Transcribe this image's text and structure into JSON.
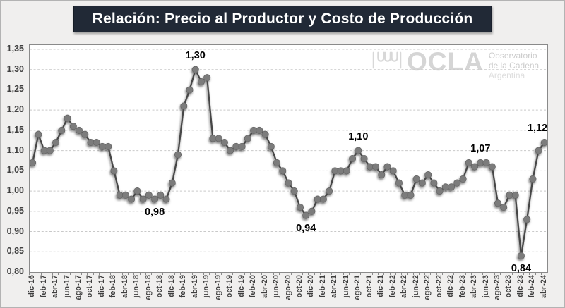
{
  "title": "Relación: Precio al Productor y Costo de Producción",
  "watermark": {
    "brand": "OCLA",
    "lines": [
      "Observatorio",
      "de la Cadena",
      "Argentina"
    ]
  },
  "colors": {
    "title_bg": "#212936",
    "title_text": "#ffffff",
    "line": "#474747",
    "marker": "#7b7b7b",
    "grid": "#c9c9c9",
    "plot_border": "#8a8a8a",
    "background": "#f0efee",
    "axis_text": "#3f3f3f",
    "callout_text": "#000000",
    "watermark_text": "#d2d2d2"
  },
  "chart_data": {
    "type": "line",
    "title": "Relación: Precio al Productor y Costo de Producción",
    "xlabel": "",
    "ylabel": "",
    "ylim": [
      0.8,
      1.35
    ],
    "ytick_step": 0.05,
    "ytick_labels": [
      "1,35",
      "1,30",
      "1,25",
      "1,20",
      "1,15",
      "1,10",
      "1,05",
      "1,00",
      "0,95",
      "0,90",
      "0,85",
      "0,80"
    ],
    "xtick_every": 2,
    "grid": "horizontal-dashed",
    "legend": "none",
    "marker": "circle",
    "x": [
      "dic-16",
      "ene-17",
      "feb-17",
      "mar-17",
      "abr-17",
      "may-17",
      "jun-17",
      "jul-17",
      "ago-17",
      "sep-17",
      "oct-17",
      "nov-17",
      "dic-17",
      "ene-18",
      "feb-18",
      "mar-18",
      "abr-18",
      "may-18",
      "jun-18",
      "jul-18",
      "ago-18",
      "sep-18",
      "oct-18",
      "nov-18",
      "dic-18",
      "ene-19",
      "feb-19",
      "mar-19",
      "abr-19",
      "may-19",
      "jun-19",
      "jul-19",
      "ago-19",
      "sep-19",
      "oct-19",
      "nov-19",
      "dic-19",
      "ene-20",
      "feb-20",
      "mar-20",
      "abr-20",
      "may-20",
      "jun-20",
      "jul-20",
      "ago-20",
      "sep-20",
      "oct-20",
      "nov-20",
      "dic-20",
      "ene-21",
      "feb-21",
      "mar-21",
      "abr-21",
      "may-21",
      "jun-21",
      "jul-21",
      "ago-21",
      "sep-21",
      "oct-21",
      "nov-21",
      "dic-21",
      "ene-22",
      "feb-22",
      "mar-22",
      "abr-22",
      "may-22",
      "jun-22",
      "jul-22",
      "ago-22",
      "sep-22",
      "oct-22",
      "nov-22",
      "dic-22",
      "ene-23",
      "feb-23",
      "mar-23",
      "abr-23",
      "may-23",
      "jun-23",
      "jul-23",
      "ago-23",
      "sep-23",
      "oct-23",
      "nov-23",
      "dic-23",
      "ene-24",
      "feb-24",
      "mar-24",
      "abr-24"
    ],
    "series": [
      {
        "name": "Relación Precio al Productor / Costo de Producción",
        "values": [
          1.07,
          1.14,
          1.1,
          1.1,
          1.12,
          1.15,
          1.18,
          1.16,
          1.15,
          1.14,
          1.12,
          1.12,
          1.11,
          1.11,
          1.05,
          0.99,
          0.99,
          0.98,
          1.0,
          0.98,
          0.99,
          0.98,
          0.99,
          0.98,
          1.02,
          1.09,
          1.21,
          1.25,
          1.3,
          1.27,
          1.28,
          1.13,
          1.13,
          1.12,
          1.1,
          1.11,
          1.11,
          1.13,
          1.15,
          1.15,
          1.14,
          1.11,
          1.07,
          1.05,
          1.02,
          1.0,
          0.96,
          0.94,
          0.95,
          0.98,
          0.98,
          1.0,
          1.05,
          1.05,
          1.05,
          1.08,
          1.1,
          1.08,
          1.06,
          1.06,
          1.04,
          1.06,
          1.05,
          1.02,
          0.99,
          0.99,
          1.03,
          1.02,
          1.04,
          1.02,
          1.0,
          1.01,
          1.01,
          1.02,
          1.03,
          1.07,
          1.06,
          1.07,
          1.07,
          1.06,
          0.97,
          0.96,
          0.99,
          0.99,
          0.84,
          0.93,
          1.03,
          1.1,
          1.12
        ]
      }
    ],
    "annotations": [
      {
        "x": "abr-19",
        "index": 28,
        "text": "1,30",
        "placement": "above"
      },
      {
        "x": "sep-18",
        "index": 21,
        "text": "0,98",
        "placement": "below"
      },
      {
        "x": "nov-20",
        "index": 47,
        "text": "0,94",
        "placement": "below"
      },
      {
        "x": "ago-21",
        "index": 56,
        "text": "1,10",
        "placement": "above"
      },
      {
        "x": "may-23",
        "index": 77,
        "text": "1,07",
        "placement": "above"
      },
      {
        "x": "dic-23",
        "index": 84,
        "text": "0,84",
        "placement": "below"
      },
      {
        "x": "abr-24",
        "index": 88,
        "text": "1,12",
        "placement": "above"
      }
    ]
  }
}
